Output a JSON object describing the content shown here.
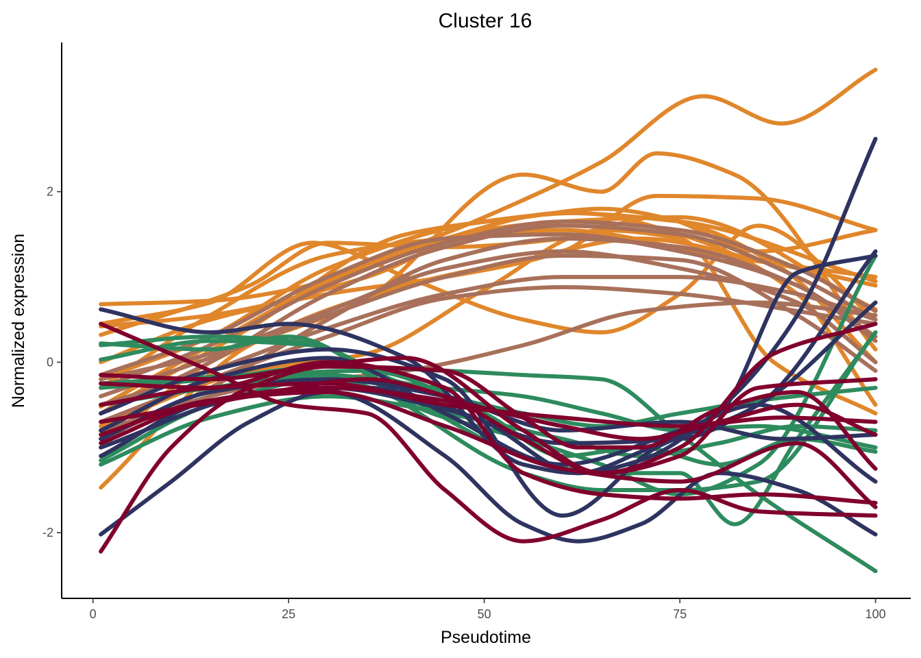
{
  "chart_data": {
    "type": "line",
    "title": "Cluster 16",
    "xlabel": "Pseudotime",
    "ylabel": "Normalized expression",
    "xlim": [
      -4,
      104.5
    ],
    "ylim": [
      -2.77,
      3.75
    ],
    "x_ticks": [
      0,
      25,
      50,
      75,
      100
    ],
    "x_tick_labels": [
      "0",
      "25",
      "50",
      "75",
      "100"
    ],
    "y_ticks": [
      -2,
      0,
      2
    ],
    "y_tick_labels": [
      "-2",
      "0",
      "2"
    ],
    "grid": false,
    "legend": "none",
    "group_colors": {
      "orange": "#E0862B",
      "brown": "#A8705A",
      "green": "#2E8B5E",
      "navy": "#2E3360",
      "crimson": "#80002D"
    },
    "series": [
      {
        "group": "orange",
        "x": [
          1,
          20,
          40,
          55,
          70,
          85,
          100
        ],
        "y": [
          -1.47,
          0.2,
          0.9,
          1.2,
          1.45,
          1.2,
          0.9
        ]
      },
      {
        "group": "orange",
        "x": [
          1,
          15,
          30,
          45,
          60,
          80,
          100
        ],
        "y": [
          -0.3,
          0.55,
          1.25,
          1.45,
          1.55,
          1.25,
          1.0
        ]
      },
      {
        "group": "orange",
        "x": [
          1,
          15,
          30,
          45,
          60,
          75,
          100
        ],
        "y": [
          0.68,
          0.72,
          0.95,
          1.45,
          1.75,
          1.65,
          0.95
        ]
      },
      {
        "group": "orange",
        "x": [
          1,
          15,
          35,
          50,
          60,
          75,
          100
        ],
        "y": [
          0.42,
          0.55,
          1.0,
          1.55,
          1.65,
          1.7,
          0.62
        ]
      },
      {
        "group": "orange",
        "x": [
          1,
          15,
          30,
          50,
          65,
          78,
          88,
          100
        ],
        "y": [
          -0.52,
          0.2,
          0.95,
          1.7,
          2.35,
          3.12,
          2.8,
          3.43
        ]
      },
      {
        "group": "orange",
        "x": [
          1,
          15,
          35,
          55,
          65,
          72,
          82,
          100
        ],
        "y": [
          -1.0,
          0.0,
          0.75,
          2.2,
          2.0,
          2.45,
          2.2,
          0.15
        ]
      },
      {
        "group": "orange",
        "x": [
          1,
          20,
          30,
          45,
          60,
          72,
          85,
          100
        ],
        "y": [
          0.32,
          0.9,
          1.4,
          1.35,
          1.45,
          1.7,
          1.3,
          1.55
        ]
      },
      {
        "group": "orange",
        "x": [
          1,
          15,
          30,
          45,
          60,
          72,
          85,
          100
        ],
        "y": [
          0.0,
          0.5,
          0.8,
          1.0,
          1.3,
          1.95,
          1.92,
          1.55
        ]
      },
      {
        "group": "orange",
        "x": [
          1,
          15,
          28,
          40,
          55,
          65,
          75,
          85,
          100
        ],
        "y": [
          0.45,
          0.7,
          1.4,
          1.0,
          0.5,
          0.35,
          0.8,
          1.6,
          0.5
        ]
      },
      {
        "group": "orange",
        "x": [
          1,
          20,
          35,
          50,
          65,
          75,
          87,
          100
        ],
        "y": [
          -0.75,
          -0.1,
          0.1,
          0.85,
          1.55,
          1.45,
          0.0,
          -0.6
        ]
      },
      {
        "group": "orange",
        "x": [
          1,
          15,
          30,
          50,
          62,
          75,
          90,
          100
        ],
        "y": [
          -0.2,
          0.3,
          1.1,
          1.65,
          1.75,
          1.5,
          0.8,
          -0.5
        ]
      },
      {
        "group": "orange",
        "x": [
          1,
          20,
          40,
          55,
          65,
          75,
          88,
          100
        ],
        "y": [
          -0.6,
          0.4,
          1.5,
          1.7,
          1.8,
          1.65,
          1.1,
          0.0
        ]
      },
      {
        "group": "brown",
        "x": [
          1,
          15,
          30,
          45,
          60,
          75,
          90,
          100
        ],
        "y": [
          -0.2,
          0.1,
          0.6,
          1.1,
          1.3,
          1.1,
          0.7,
          0.0
        ]
      },
      {
        "group": "brown",
        "x": [
          1,
          15,
          30,
          45,
          60,
          75,
          90,
          100
        ],
        "y": [
          -0.5,
          -0.1,
          0.4,
          0.8,
          1.0,
          1.0,
          0.8,
          0.5
        ]
      },
      {
        "group": "brown",
        "x": [
          1,
          15,
          30,
          45,
          60,
          75,
          90,
          100
        ],
        "y": [
          -0.9,
          -0.3,
          0.5,
          1.2,
          1.45,
          1.35,
          0.9,
          0.3
        ]
      },
      {
        "group": "brown",
        "x": [
          1,
          15,
          30,
          45,
          60,
          75,
          90,
          100
        ],
        "y": [
          -0.6,
          0.0,
          0.8,
          1.35,
          1.6,
          1.5,
          1.0,
          0.5
        ]
      },
      {
        "group": "brown",
        "x": [
          1,
          15,
          30,
          45,
          60,
          75,
          90,
          100
        ],
        "y": [
          -0.3,
          0.2,
          0.9,
          1.4,
          1.65,
          1.55,
          1.1,
          0.6
        ]
      },
      {
        "group": "brown",
        "x": [
          1,
          15,
          30,
          45,
          60,
          75,
          90,
          100
        ],
        "y": [
          -0.7,
          -0.2,
          0.3,
          0.75,
          0.88,
          0.8,
          0.6,
          0.45
        ]
      },
      {
        "group": "brown",
        "x": [
          1,
          15,
          30,
          45,
          60,
          75,
          90,
          100
        ],
        "y": [
          -0.4,
          0.05,
          0.55,
          1.0,
          1.25,
          1.2,
          0.55,
          -0.1
        ]
      },
      {
        "group": "brown",
        "x": [
          1,
          20,
          40,
          55,
          70,
          85,
          100
        ],
        "y": [
          -0.8,
          -0.3,
          -0.1,
          0.2,
          0.6,
          0.7,
          0.55
        ]
      },
      {
        "group": "brown",
        "x": [
          1,
          15,
          30,
          45,
          60,
          75,
          90,
          100
        ],
        "y": [
          -0.15,
          0.3,
          1.0,
          1.45,
          1.5,
          1.3,
          0.9,
          0.25
        ]
      },
      {
        "group": "green",
        "x": [
          1,
          15,
          30,
          45,
          60,
          70,
          80,
          90,
          100
        ],
        "y": [
          -1.2,
          -0.65,
          -0.4,
          -0.6,
          -0.9,
          -1.1,
          -0.95,
          -0.75,
          -0.8
        ]
      },
      {
        "group": "green",
        "x": [
          1,
          15,
          28,
          40,
          55,
          65,
          75,
          85,
          100
        ],
        "y": [
          0.03,
          0.25,
          0.2,
          -0.25,
          -0.4,
          -0.6,
          -0.8,
          -0.75,
          -1.0
        ]
      },
      {
        "group": "green",
        "x": [
          1,
          15,
          28,
          40,
          55,
          65,
          75,
          85,
          100
        ],
        "y": [
          0.2,
          0.3,
          0.22,
          -0.5,
          -1.3,
          -1.5,
          -1.5,
          -1.4,
          0.35
        ]
      },
      {
        "group": "green",
        "x": [
          1,
          15,
          30,
          45,
          55,
          65,
          75,
          85,
          100
        ],
        "y": [
          -0.3,
          -0.2,
          -0.05,
          -0.1,
          -0.15,
          -0.2,
          -0.85,
          -1.55,
          -2.45
        ]
      },
      {
        "group": "green",
        "x": [
          1,
          15,
          30,
          45,
          55,
          65,
          75,
          85,
          100
        ],
        "y": [
          -0.5,
          -0.3,
          -0.15,
          -0.4,
          -0.6,
          -0.75,
          -0.6,
          -0.45,
          -0.3
        ]
      },
      {
        "group": "green",
        "x": [
          1,
          15,
          30,
          45,
          55,
          65,
          75,
          85,
          100
        ],
        "y": [
          -1.15,
          -0.5,
          -0.2,
          -0.65,
          -0.9,
          -1.2,
          -1.55,
          -1.2,
          1.25
        ]
      },
      {
        "group": "green",
        "x": [
          1,
          15,
          25,
          40,
          55,
          65,
          75,
          82,
          90,
          100
        ],
        "y": [
          0.22,
          0.15,
          0.3,
          -0.4,
          -1.1,
          -1.3,
          -1.3,
          -1.9,
          -0.9,
          0.35
        ]
      },
      {
        "group": "green",
        "x": [
          1,
          20,
          35,
          50,
          60,
          70,
          80,
          90,
          100
        ],
        "y": [
          -0.25,
          -0.15,
          -0.1,
          -0.6,
          -1.1,
          -1.0,
          -1.2,
          -0.9,
          -1.05
        ]
      },
      {
        "group": "navy",
        "x": [
          1,
          10,
          20,
          30,
          45,
          55,
          62,
          70,
          80,
          90,
          100
        ],
        "y": [
          -2.02,
          -1.4,
          -0.7,
          -0.35,
          -1.1,
          -1.9,
          -2.1,
          -1.9,
          -1.3,
          -1.5,
          -2.02
        ]
      },
      {
        "group": "navy",
        "x": [
          1,
          15,
          25,
          40,
          55,
          62,
          70,
          80,
          90,
          100
        ],
        "y": [
          0.62,
          0.35,
          0.45,
          0.05,
          -1.2,
          -1.3,
          -1.15,
          -0.55,
          0.55,
          2.62
        ]
      },
      {
        "group": "navy",
        "x": [
          1,
          20,
          35,
          50,
          62,
          70,
          80,
          90,
          100
        ],
        "y": [
          -1.0,
          -0.4,
          -0.3,
          -0.7,
          -1.3,
          -1.05,
          -0.6,
          1.05,
          1.25
        ]
      },
      {
        "group": "navy",
        "x": [
          1,
          15,
          30,
          45,
          60,
          75,
          85,
          100
        ],
        "y": [
          -0.8,
          -0.2,
          0.05,
          -0.6,
          -1.2,
          -0.8,
          -0.5,
          -1.4
        ]
      },
      {
        "group": "navy",
        "x": [
          1,
          15,
          30,
          45,
          60,
          75,
          85,
          100
        ],
        "y": [
          -1.1,
          -0.45,
          -0.3,
          -0.55,
          -0.95,
          -0.9,
          -0.5,
          0.7
        ]
      },
      {
        "group": "navy",
        "x": [
          1,
          15,
          30,
          45,
          60,
          72,
          85,
          100
        ],
        "y": [
          -0.6,
          -0.1,
          0.15,
          -0.2,
          -1.8,
          -1.0,
          -0.5,
          1.3
        ]
      },
      {
        "group": "navy",
        "x": [
          1,
          15,
          30,
          45,
          60,
          75,
          88,
          100
        ],
        "y": [
          -0.9,
          -0.35,
          -0.2,
          -0.4,
          -0.8,
          -0.7,
          -0.9,
          -0.85
        ]
      },
      {
        "group": "crimson",
        "x": [
          1,
          10,
          20,
          30,
          45,
          55,
          62,
          70,
          80,
          90,
          100
        ],
        "y": [
          -2.22,
          -1.0,
          -0.3,
          -0.05,
          -0.1,
          -0.65,
          -1.0,
          -1.0,
          -0.55,
          -0.35,
          -1.25
        ]
      },
      {
        "group": "crimson",
        "x": [
          1,
          15,
          25,
          35,
          45,
          55,
          65,
          75,
          85,
          100
        ],
        "y": [
          0.45,
          -0.1,
          -0.5,
          -0.6,
          -1.5,
          -2.1,
          -1.85,
          -1.5,
          -1.75,
          -1.8
        ]
      },
      {
        "group": "crimson",
        "x": [
          1,
          20,
          35,
          45,
          55,
          65,
          75,
          87,
          100
        ],
        "y": [
          -0.7,
          -0.4,
          -0.2,
          -0.4,
          -0.9,
          -1.3,
          -1.0,
          0.1,
          0.45
        ]
      },
      {
        "group": "crimson",
        "x": [
          1,
          15,
          30,
          45,
          60,
          70,
          80,
          90,
          100
        ],
        "y": [
          -0.95,
          -0.45,
          -0.3,
          -0.45,
          -0.75,
          -0.9,
          -0.7,
          -0.5,
          -0.85
        ]
      },
      {
        "group": "crimson",
        "x": [
          1,
          15,
          30,
          45,
          55,
          65,
          75,
          85,
          100
        ],
        "y": [
          -0.25,
          -0.3,
          0.0,
          -0.3,
          -1.3,
          -1.55,
          -1.6,
          -1.55,
          -1.65
        ]
      },
      {
        "group": "crimson",
        "x": [
          1,
          15,
          30,
          45,
          60,
          75,
          88,
          100
        ],
        "y": [
          -0.5,
          -0.3,
          -0.25,
          -0.5,
          -0.65,
          -0.75,
          -0.65,
          -0.7
        ]
      },
      {
        "group": "crimson",
        "x": [
          1,
          15,
          30,
          45,
          60,
          75,
          90,
          100
        ],
        "y": [
          -0.85,
          -0.45,
          -0.35,
          -0.75,
          -1.25,
          -1.4,
          -0.95,
          -1.7
        ]
      },
      {
        "group": "crimson",
        "x": [
          1,
          15,
          28,
          40,
          55,
          65,
          75,
          85,
          100
        ],
        "y": [
          -0.15,
          -0.2,
          -0.05,
          0.05,
          -0.8,
          -1.3,
          -1.1,
          -0.3,
          -0.2
        ]
      }
    ]
  }
}
